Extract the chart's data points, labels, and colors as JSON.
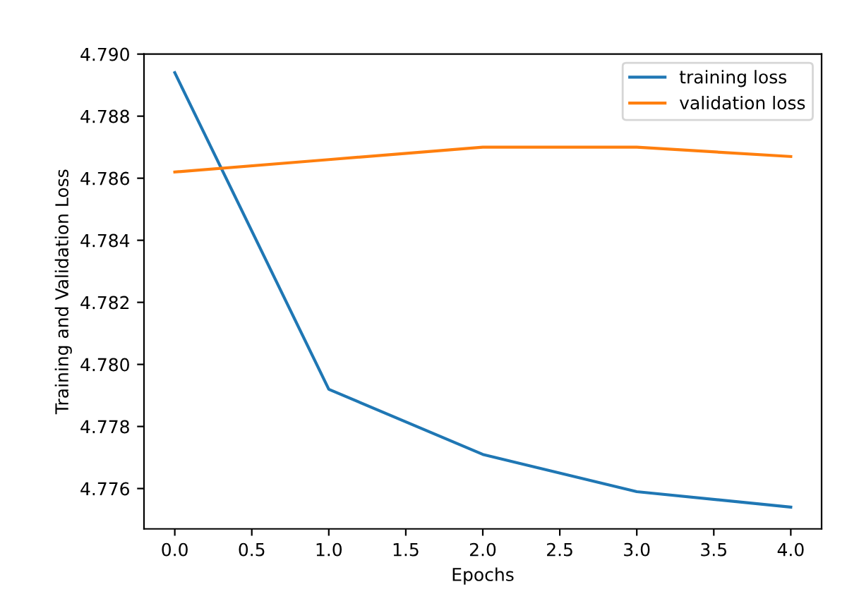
{
  "chart_data": {
    "type": "line",
    "xlabel": "Epochs",
    "ylabel": "Training and Validation Loss",
    "x": [
      0,
      1,
      2,
      3,
      4
    ],
    "series": [
      {
        "name": "training loss",
        "color": "#1f77b4",
        "values": [
          4.7894,
          4.7792,
          4.7771,
          4.7759,
          4.7754
        ]
      },
      {
        "name": "validation loss",
        "color": "#ff7f0e",
        "values": [
          4.7862,
          4.7866,
          4.787,
          4.787,
          4.7867
        ]
      }
    ],
    "xlim": [
      -0.2,
      4.2
    ],
    "ylim": [
      4.7747,
      4.79
    ],
    "xticks": [
      {
        "value": 0,
        "label": "0.0"
      },
      {
        "value": 0.5,
        "label": "0.5"
      },
      {
        "value": 1,
        "label": "1.0"
      },
      {
        "value": 1.5,
        "label": "1.5"
      },
      {
        "value": 2,
        "label": "2.0"
      },
      {
        "value": 2.5,
        "label": "2.5"
      },
      {
        "value": 3,
        "label": "3.0"
      },
      {
        "value": 3.5,
        "label": "3.5"
      },
      {
        "value": 4,
        "label": "4.0"
      }
    ],
    "yticks": [
      {
        "value": 4.776,
        "label": "4.776"
      },
      {
        "value": 4.778,
        "label": "4.778"
      },
      {
        "value": 4.78,
        "label": "4.780"
      },
      {
        "value": 4.782,
        "label": "4.782"
      },
      {
        "value": 4.784,
        "label": "4.784"
      },
      {
        "value": 4.786,
        "label": "4.786"
      },
      {
        "value": 4.788,
        "label": "4.788"
      },
      {
        "value": 4.79,
        "label": "4.790"
      }
    ],
    "legend": "top right",
    "grid": false
  }
}
